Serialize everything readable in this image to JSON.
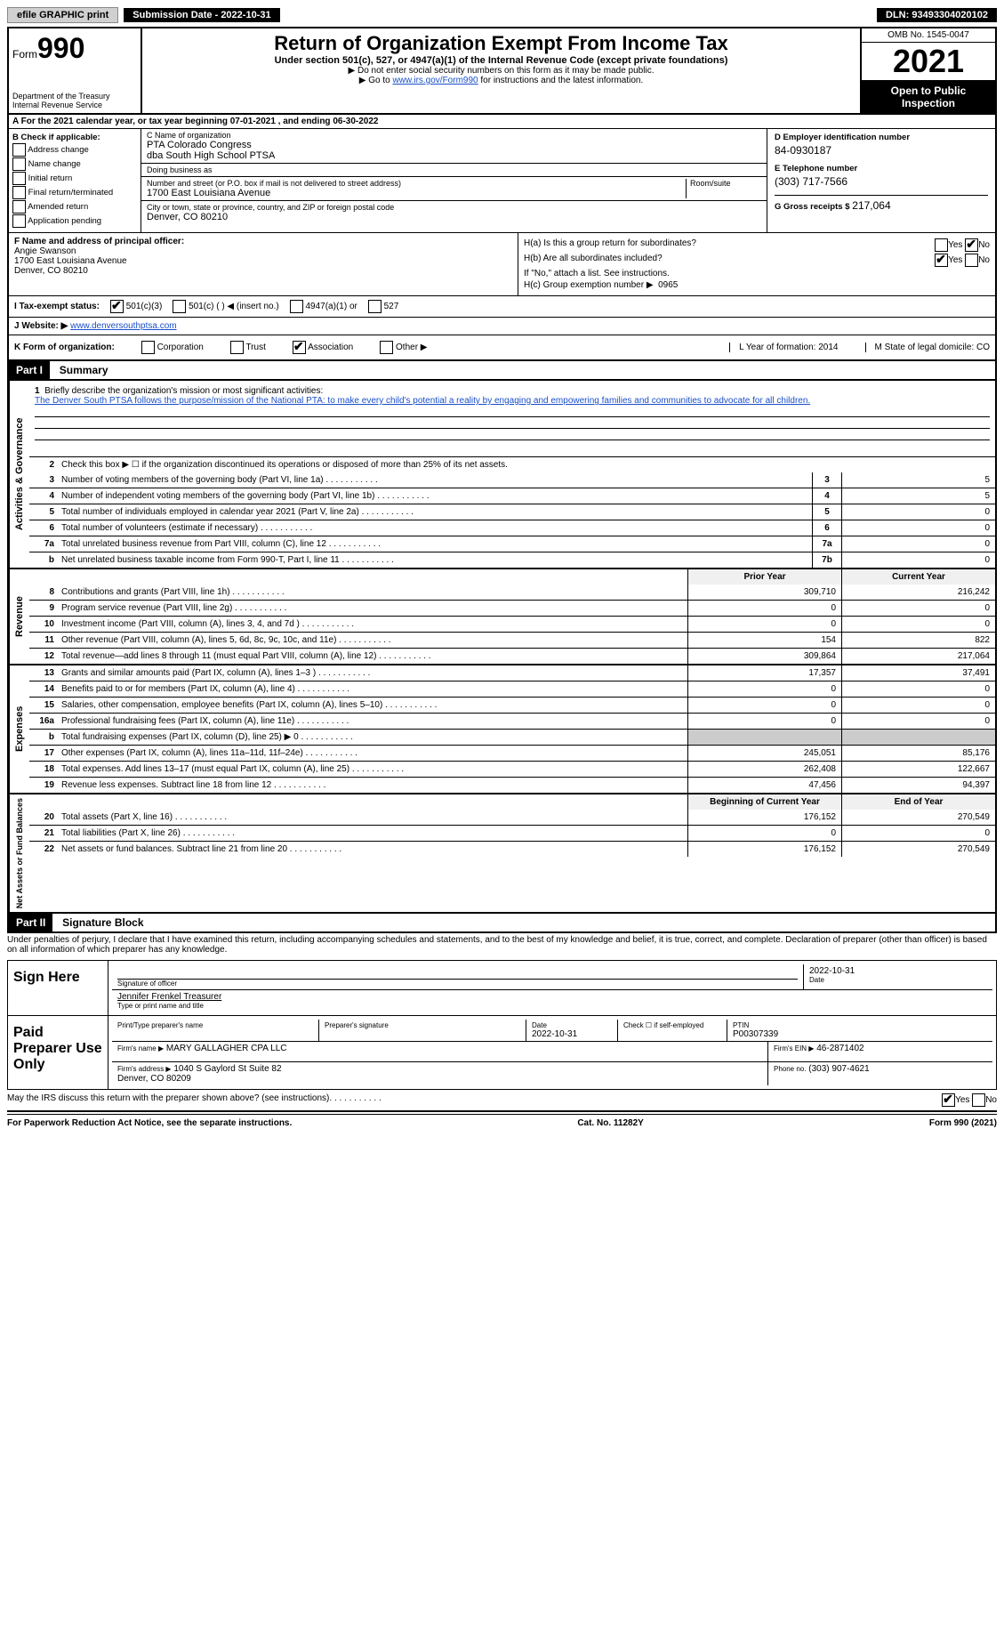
{
  "topbar": {
    "efile": "efile GRAPHIC print",
    "submission": "Submission Date - 2022-10-31",
    "dln": "DLN: 93493304020102"
  },
  "header": {
    "form_word": "Form",
    "form_num": "990",
    "dept": "Department of the Treasury\nInternal Revenue Service",
    "title": "Return of Organization Exempt From Income Tax",
    "subtitle": "Under section 501(c), 527, or 4947(a)(1) of the Internal Revenue Code (except private foundations)",
    "note1": "▶ Do not enter social security numbers on this form as it may be made public.",
    "note2_pre": "▶ Go to ",
    "note2_link": "www.irs.gov/Form990",
    "note2_post": " for instructions and the latest information.",
    "omb": "OMB No. 1545-0047",
    "year": "2021",
    "inspect": "Open to Public Inspection"
  },
  "row_a": "A For the 2021 calendar year, or tax year beginning 07-01-2021   , and ending 06-30-2022",
  "col_b": {
    "title": "B Check if applicable:",
    "items": [
      "Address change",
      "Name change",
      "Initial return",
      "Final return/terminated",
      "Amended return",
      "Application pending"
    ]
  },
  "col_c": {
    "name_label": "C Name of organization",
    "name1": "PTA Colorado Congress",
    "name2": "dba South High School PTSA",
    "dba_label": "Doing business as",
    "street_label": "Number and street (or P.O. box if mail is not delivered to street address)",
    "room_label": "Room/suite",
    "street": "1700 East Louisiana Avenue",
    "city_label": "City or town, state or province, country, and ZIP or foreign postal code",
    "city": "Denver, CO  80210"
  },
  "col_d": {
    "ein_label": "D Employer identification number",
    "ein": "84-0930187",
    "phone_label": "E Telephone number",
    "phone": "(303) 717-7566",
    "gross_label": "G Gross receipts $",
    "gross": "217,064"
  },
  "col_f": {
    "label": "F  Name and address of principal officer:",
    "name": "Angie Swanson",
    "addr1": "1700 East Louisiana Avenue",
    "addr2": "Denver, CO  80210"
  },
  "col_h": {
    "ha": "H(a)  Is this a group return for subordinates?",
    "hb": "H(b)  Are all subordinates included?",
    "hb_note": "If \"No,\" attach a list. See instructions.",
    "hc": "H(c)  Group exemption number ▶",
    "hc_val": "0965"
  },
  "row_i": {
    "label": "I   Tax-exempt status:",
    "opts": [
      "501(c)(3)",
      "501(c) (  ) ◀ (insert no.)",
      "4947(a)(1) or",
      "527"
    ]
  },
  "row_j": {
    "label": "J   Website: ▶",
    "val": "www.denversouthptsa.com"
  },
  "row_k": {
    "label": "K Form of organization:",
    "opts": [
      "Corporation",
      "Trust",
      "Association",
      "Other ▶"
    ],
    "l": "L Year of formation: 2014",
    "m": "M State of legal domicile: CO"
  },
  "part1": {
    "header": "Part I",
    "title": "Summary"
  },
  "mission": {
    "q": "Briefly describe the organization's mission or most significant activities:",
    "text": "The Denver South PTSA follows the purpose/mission of the National PTA: to make every child's potential a reality by engaging and empowering families and communities to advocate for all children."
  },
  "line2": "Check this box ▶ ☐  if the organization discontinued its operations or disposed of more than 25% of its net assets.",
  "lines_gov": [
    {
      "n": "3",
      "d": "Number of voting members of the governing body (Part VI, line 1a)",
      "box": "3",
      "v": "5"
    },
    {
      "n": "4",
      "d": "Number of independent voting members of the governing body (Part VI, line 1b)",
      "box": "4",
      "v": "5"
    },
    {
      "n": "5",
      "d": "Total number of individuals employed in calendar year 2021 (Part V, line 2a)",
      "box": "5",
      "v": "0"
    },
    {
      "n": "6",
      "d": "Total number of volunteers (estimate if necessary)",
      "box": "6",
      "v": "0"
    },
    {
      "n": "7a",
      "d": "Total unrelated business revenue from Part VIII, column (C), line 12",
      "box": "7a",
      "v": "0"
    },
    {
      "n": "b",
      "d": "Net unrelated business taxable income from Form 990-T, Part I, line 11",
      "box": "7b",
      "v": "0"
    }
  ],
  "rev_header": {
    "prior": "Prior Year",
    "curr": "Current Year"
  },
  "lines_rev": [
    {
      "n": "8",
      "d": "Contributions and grants (Part VIII, line 1h)",
      "p": "309,710",
      "c": "216,242"
    },
    {
      "n": "9",
      "d": "Program service revenue (Part VIII, line 2g)",
      "p": "0",
      "c": "0"
    },
    {
      "n": "10",
      "d": "Investment income (Part VIII, column (A), lines 3, 4, and 7d )",
      "p": "0",
      "c": "0"
    },
    {
      "n": "11",
      "d": "Other revenue (Part VIII, column (A), lines 5, 6d, 8c, 9c, 10c, and 11e)",
      "p": "154",
      "c": "822"
    },
    {
      "n": "12",
      "d": "Total revenue—add lines 8 through 11 (must equal Part VIII, column (A), line 12)",
      "p": "309,864",
      "c": "217,064"
    }
  ],
  "lines_exp": [
    {
      "n": "13",
      "d": "Grants and similar amounts paid (Part IX, column (A), lines 1–3 )",
      "p": "17,357",
      "c": "37,491"
    },
    {
      "n": "14",
      "d": "Benefits paid to or for members (Part IX, column (A), line 4)",
      "p": "0",
      "c": "0"
    },
    {
      "n": "15",
      "d": "Salaries, other compensation, employee benefits (Part IX, column (A), lines 5–10)",
      "p": "0",
      "c": "0"
    },
    {
      "n": "16a",
      "d": "Professional fundraising fees (Part IX, column (A), line 11e)",
      "p": "0",
      "c": "0"
    },
    {
      "n": "b",
      "d": "Total fundraising expenses (Part IX, column (D), line 25) ▶ 0",
      "p": "",
      "c": "",
      "shade": true
    },
    {
      "n": "17",
      "d": "Other expenses (Part IX, column (A), lines 11a–11d, 11f–24e)",
      "p": "245,051",
      "c": "85,176"
    },
    {
      "n": "18",
      "d": "Total expenses. Add lines 13–17 (must equal Part IX, column (A), line 25)",
      "p": "262,408",
      "c": "122,667"
    },
    {
      "n": "19",
      "d": "Revenue less expenses. Subtract line 18 from line 12",
      "p": "47,456",
      "c": "94,397"
    }
  ],
  "net_header": {
    "prior": "Beginning of Current Year",
    "curr": "End of Year"
  },
  "lines_net": [
    {
      "n": "20",
      "d": "Total assets (Part X, line 16)",
      "p": "176,152",
      "c": "270,549"
    },
    {
      "n": "21",
      "d": "Total liabilities (Part X, line 26)",
      "p": "0",
      "c": "0"
    },
    {
      "n": "22",
      "d": "Net assets or fund balances. Subtract line 21 from line 20",
      "p": "176,152",
      "c": "270,549"
    }
  ],
  "part2": {
    "header": "Part II",
    "title": "Signature Block"
  },
  "penalty": "Under penalties of perjury, I declare that I have examined this return, including accompanying schedules and statements, and to the best of my knowledge and belief, it is true, correct, and complete. Declaration of preparer (other than officer) is based on all information of which preparer has any knowledge.",
  "sign": {
    "label": "Sign Here",
    "sig_label": "Signature of officer",
    "date": "2022-10-31",
    "date_label": "Date",
    "name": "Jennifer Frenkel Treasurer",
    "name_label": "Type or print name and title"
  },
  "preparer": {
    "label": "Paid Preparer Use Only",
    "print_label": "Print/Type preparer's name",
    "sig_label": "Preparer's signature",
    "date_label": "Date",
    "date": "2022-10-31",
    "check_label": "Check ☐ if self-employed",
    "ptin_label": "PTIN",
    "ptin": "P00307339",
    "firm_label": "Firm's name   ▶",
    "firm": "MARY GALLAGHER CPA LLC",
    "ein_label": "Firm's EIN ▶",
    "ein": "46-2871402",
    "addr_label": "Firm's address ▶",
    "addr": "1040 S Gaylord St Suite 82\nDenver, CO  80209",
    "phone_label": "Phone no.",
    "phone": "(303) 907-4621"
  },
  "discuss": "May the IRS discuss this return with the preparer shown above? (see instructions)",
  "footer": {
    "left": "For Paperwork Reduction Act Notice, see the separate instructions.",
    "mid": "Cat. No. 11282Y",
    "right": "Form 990 (2021)"
  }
}
